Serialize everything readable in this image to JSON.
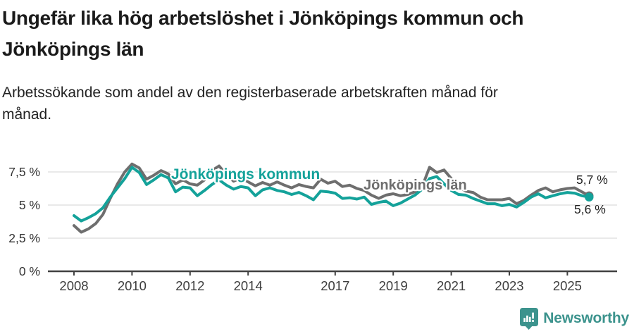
{
  "header": {
    "title_line1": "Ungefär lika hög arbetslöshet i Jönköpings kommun och",
    "title_line2": "Jönköpings län",
    "subtitle_line1": "Arbetssökande som andel av den registerbaserade arbetskraften månad för",
    "subtitle_line2": "månad."
  },
  "chart_data": {
    "type": "line",
    "title": "Ungefär lika hög arbetslöshet i Jönköpings kommun och Jönköpings län",
    "subtitle": "Arbetssökande som andel av den registerbaserade arbetskraften månad för månad.",
    "unit": "%",
    "x_start": 2008.0,
    "x_step": 0.25,
    "xlim": [
      2008,
      2025.9
    ],
    "ylim": [
      0,
      8.6
    ],
    "grid": "horizontal",
    "x_ticks": [
      "2008",
      "2010",
      "2012",
      "2014",
      "2017",
      "2019",
      "2021",
      "2023",
      "2025"
    ],
    "x_tick_years": [
      2008,
      2010,
      2012,
      2014,
      2017,
      2019,
      2021,
      2023,
      2025
    ],
    "y_ticks": [
      {
        "label": "0 %",
        "value": 0
      },
      {
        "label": "2,5 %",
        "value": 2.5
      },
      {
        "label": "5 %",
        "value": 5
      },
      {
        "label": "7,5 %",
        "value": 7.5
      }
    ],
    "series": [
      {
        "name": "Jönköpings kommun",
        "key": "kommun",
        "color": "#14a29a",
        "end_value_label": "5,6 %",
        "values": [
          4.2,
          3.8,
          4.05,
          4.35,
          4.8,
          5.6,
          6.3,
          7.0,
          7.85,
          7.45,
          6.55,
          6.9,
          7.3,
          7.05,
          6.0,
          6.35,
          6.3,
          5.7,
          6.1,
          6.55,
          6.9,
          6.5,
          6.2,
          6.4,
          6.3,
          5.7,
          6.15,
          6.3,
          6.1,
          6.0,
          5.8,
          5.95,
          5.7,
          5.4,
          6.05,
          6.0,
          5.9,
          5.5,
          5.55,
          5.45,
          5.6,
          5.05,
          5.2,
          5.3,
          4.95,
          5.15,
          5.45,
          5.75,
          6.2,
          7.0,
          7.15,
          6.6,
          6.1,
          5.8,
          5.75,
          5.5,
          5.3,
          5.1,
          5.1,
          4.95,
          5.05,
          4.85,
          5.2,
          5.6,
          5.85,
          5.55,
          5.7,
          5.85,
          5.95,
          5.9,
          5.7,
          5.6
        ]
      },
      {
        "name": "Jönköpings län",
        "key": "lan",
        "color": "#6e6e6e",
        "end_value_label": "5,7 %",
        "values": [
          3.45,
          2.95,
          3.2,
          3.6,
          4.3,
          5.5,
          6.6,
          7.5,
          8.1,
          7.8,
          6.95,
          7.25,
          7.6,
          7.35,
          6.6,
          6.9,
          6.6,
          6.5,
          6.9,
          7.6,
          7.95,
          7.3,
          6.8,
          7.05,
          6.75,
          6.45,
          6.7,
          6.5,
          6.75,
          6.5,
          6.3,
          6.55,
          6.4,
          6.3,
          6.95,
          6.65,
          6.8,
          6.4,
          6.5,
          6.25,
          6.1,
          5.75,
          5.5,
          5.75,
          5.85,
          5.7,
          5.8,
          6.0,
          6.4,
          7.85,
          7.45,
          7.65,
          7.0,
          6.4,
          6.05,
          5.95,
          5.6,
          5.4,
          5.4,
          5.4,
          5.5,
          5.1,
          5.35,
          5.75,
          6.1,
          6.3,
          6.0,
          6.15,
          6.25,
          6.3,
          6.0,
          5.7
        ]
      }
    ],
    "end_labels": {
      "lan": "5,7 %",
      "kommun": "5,6 %"
    }
  },
  "colors": {
    "accent_teal": "#14a29a",
    "line_gray": "#6e6e6e",
    "axis": "#414141",
    "gridline": "#e2e2e2",
    "logo_teal": "#3c938d"
  },
  "footer": {
    "brand": "Newsworthy"
  }
}
